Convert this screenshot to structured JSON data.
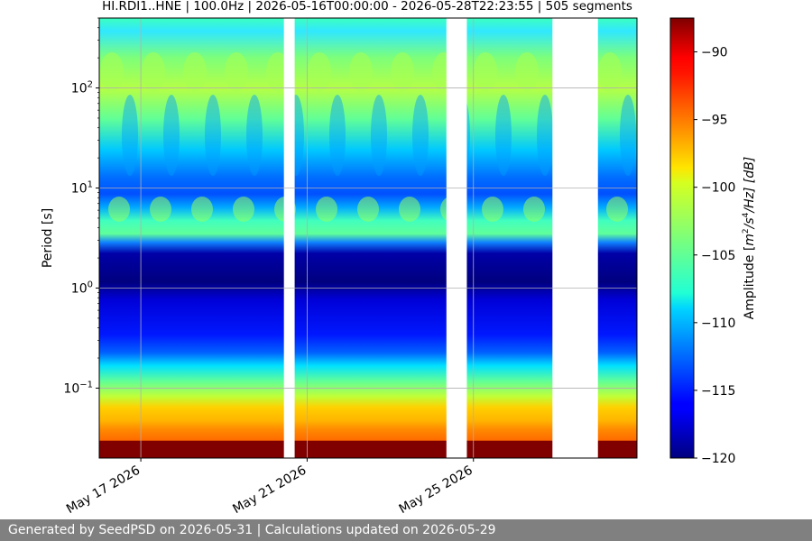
{
  "chart_data": {
    "type": "heatmap",
    "title": "HI.RDI1..HNE | 100.0Hz | 2026-05-16T00:00:00 - 2026-05-28T22:23:55 | 505 segments",
    "ylabel": "Period [s]",
    "y_scale": "log",
    "y_range_period_s": [
      0.02,
      500
    ],
    "y_ticks": [
      {
        "value": 0.1,
        "base": "10",
        "exp": "−1"
      },
      {
        "value": 1,
        "base": "10",
        "exp": "0"
      },
      {
        "value": 10,
        "base": "10",
        "exp": "1"
      },
      {
        "value": 100,
        "base": "10",
        "exp": "2"
      }
    ],
    "x_range_days": [
      "2026-05-16T00:00:00",
      "2026-05-28T22:23:55"
    ],
    "x_ticks": [
      "May 17 2026",
      "May 21 2026",
      "May 25 2026"
    ],
    "x_tick_dates": [
      "2026-05-17",
      "2026-05-21",
      "2026-05-25"
    ],
    "data_gaps": [
      [
        "2026-05-20T10:36",
        "2026-05-20T16:48"
      ],
      [
        "2026-05-24T08:24",
        "2026-05-24T20:12"
      ],
      [
        "2026-05-26T21:36",
        "2026-05-27T23:52"
      ]
    ],
    "grid": true,
    "colorbar": {
      "label_prefix": "Amplitude [",
      "label_m": "m",
      "label_sup_2": "2",
      "label_mid": "/s",
      "label_sup_4": "4",
      "label_end": "/Hz] [dB]",
      "range_db": [
        -120,
        -87.5
      ],
      "ticks": [
        "−90",
        "−95",
        "−100",
        "−105",
        "−110",
        "−115",
        "−120"
      ],
      "tick_values": [
        -90,
        -95,
        -100,
        -105,
        -110,
        -115,
        -120
      ],
      "colormap": "jet"
    }
  },
  "footer": {
    "text": "Generated by SeedPSD on 2026-05-31 | Calculations updated on 2026-05-29"
  }
}
